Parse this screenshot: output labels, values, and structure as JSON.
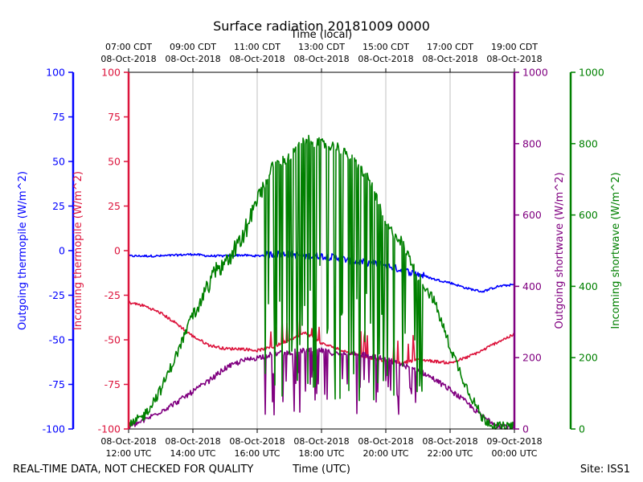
{
  "chart_data": {
    "type": "line",
    "title": "Surface radiation 20181009 0000",
    "top_axis_label": "Time (local)",
    "xlabel": "Time (UTC)",
    "x_unit": "hours UTC since 12:00 UTC 08-Oct-2018",
    "xlim": [
      0,
      12
    ],
    "bottom_ticks": [
      {
        "x": 0,
        "lines": [
          "08-Oct-2018",
          "12:00 UTC"
        ]
      },
      {
        "x": 2,
        "lines": [
          "08-Oct-2018",
          "14:00 UTC"
        ]
      },
      {
        "x": 4,
        "lines": [
          "08-Oct-2018",
          "16:00 UTC"
        ]
      },
      {
        "x": 6,
        "lines": [
          "08-Oct-2018",
          "18:00 UTC"
        ]
      },
      {
        "x": 8,
        "lines": [
          "08-Oct-2018",
          "20:00 UTC"
        ]
      },
      {
        "x": 10,
        "lines": [
          "08-Oct-2018",
          "22:00 UTC"
        ]
      },
      {
        "x": 12,
        "lines": [
          "09-Oct-2018",
          "00:00 UTC"
        ]
      }
    ],
    "top_ticks": [
      {
        "x": 0,
        "lines": [
          "07:00 CDT",
          "08-Oct-2018"
        ]
      },
      {
        "x": 2,
        "lines": [
          "09:00 CDT",
          "08-Oct-2018"
        ]
      },
      {
        "x": 4,
        "lines": [
          "11:00 CDT",
          "08-Oct-2018"
        ]
      },
      {
        "x": 6,
        "lines": [
          "13:00 CDT",
          "08-Oct-2018"
        ]
      },
      {
        "x": 8,
        "lines": [
          "15:00 CDT",
          "08-Oct-2018"
        ]
      },
      {
        "x": 10,
        "lines": [
          "17:00 CDT",
          "08-Oct-2018"
        ]
      },
      {
        "x": 12,
        "lines": [
          "19:00 CDT",
          "08-Oct-2018"
        ]
      }
    ],
    "axes": [
      {
        "id": "out_thermopile",
        "label": "Outgoing thermopile (W/m^2)",
        "color": "#0000ff",
        "side": "left-outer",
        "ylim": [
          -100,
          100
        ],
        "ticks": [
          -100,
          -75,
          -50,
          -25,
          0,
          25,
          50,
          75,
          100
        ]
      },
      {
        "id": "in_thermopile",
        "label": "Incoming thermopile (W/m^2)",
        "color": "#dc143c",
        "side": "left-inner",
        "ylim": [
          -100,
          100
        ],
        "ticks": [
          -100,
          -75,
          -50,
          -25,
          0,
          25,
          50,
          75,
          100
        ]
      },
      {
        "id": "out_shortwave",
        "label": "Outgoing shortwave (W/m^2)",
        "color": "#800080",
        "side": "right-inner",
        "ylim": [
          0,
          1000
        ],
        "ticks": [
          0,
          200,
          400,
          600,
          800,
          1000
        ]
      },
      {
        "id": "in_shortwave",
        "label": "Incoming shortwave (W/m^2)",
        "color": "#008000",
        "side": "right-outer",
        "ylim": [
          0,
          1000
        ],
        "ticks": [
          0,
          200,
          400,
          600,
          800,
          1000
        ]
      }
    ],
    "series": [
      {
        "name": "Outgoing thermopile",
        "axis": "out_thermopile",
        "color": "#0000ff",
        "x": [
          0,
          0.5,
          1,
          1.5,
          2,
          2.5,
          3,
          3.5,
          4,
          4.5,
          5,
          5.5,
          6,
          6.5,
          7,
          7.5,
          8,
          8.5,
          9,
          9.5,
          10,
          10.5,
          11,
          11.5,
          12
        ],
        "y": [
          -3,
          -3,
          -3,
          -2.5,
          -2,
          -3,
          -3,
          -2.5,
          -3,
          -2,
          -2,
          -3,
          -3,
          -4,
          -6,
          -7,
          -8,
          -11,
          -13,
          -16,
          -18,
          -21,
          -23,
          -20,
          -19
        ]
      },
      {
        "name": "Incoming thermopile",
        "axis": "in_thermopile",
        "color": "#dc143c",
        "x": [
          0,
          0.5,
          1,
          1.5,
          2,
          2.5,
          3,
          3.5,
          4,
          4.5,
          5,
          5.5,
          6,
          6.5,
          7,
          7.5,
          8,
          8.5,
          9,
          9.5,
          10,
          10.5,
          11,
          11.5,
          12
        ],
        "y": [
          -29,
          -31,
          -35,
          -41,
          -48,
          -53,
          -55,
          -55,
          -56,
          -54,
          -50,
          -46,
          -52,
          -55,
          -58,
          -60,
          -62,
          -63,
          -61,
          -62,
          -63,
          -60,
          -56,
          -51,
          -47
        ]
      },
      {
        "name": "Outgoing shortwave",
        "axis": "out_shortwave",
        "color": "#800080",
        "x": [
          0,
          0.5,
          1,
          1.5,
          2,
          2.5,
          3,
          3.5,
          4,
          4.5,
          5,
          5.5,
          6,
          6.5,
          7,
          7.5,
          8,
          8.5,
          9,
          9.5,
          10,
          10.5,
          11,
          11.5,
          12
        ],
        "y": [
          5,
          25,
          50,
          75,
          105,
          135,
          170,
          190,
          200,
          210,
          215,
          220,
          220,
          210,
          215,
          205,
          195,
          180,
          165,
          140,
          110,
          75,
          35,
          10,
          5
        ]
      },
      {
        "name": "Incoming shortwave",
        "axis": "in_shortwave",
        "color": "#008000",
        "x": [
          0,
          0.5,
          1,
          1.5,
          2,
          2.5,
          3,
          3.5,
          4,
          4.5,
          5,
          5.5,
          6,
          6.5,
          7,
          7.5,
          8,
          8.5,
          9,
          9.5,
          10,
          10.5,
          11,
          11.5,
          12
        ],
        "y": [
          5,
          40,
          110,
          210,
          320,
          410,
          470,
          525,
          640,
          740,
          760,
          810,
          800,
          790,
          750,
          700,
          570,
          525,
          430,
          360,
          230,
          120,
          30,
          5,
          5
        ]
      }
    ]
  },
  "footer": {
    "left_note": "REAL-TIME DATA, NOT CHECKED FOR QUALITY",
    "site": "Site: ISS1"
  },
  "colors": {
    "out_thermopile": "#0000ff",
    "in_thermopile": "#dc143c",
    "out_shortwave": "#800080",
    "in_shortwave": "#008000",
    "grid": "#b0b0b0"
  }
}
